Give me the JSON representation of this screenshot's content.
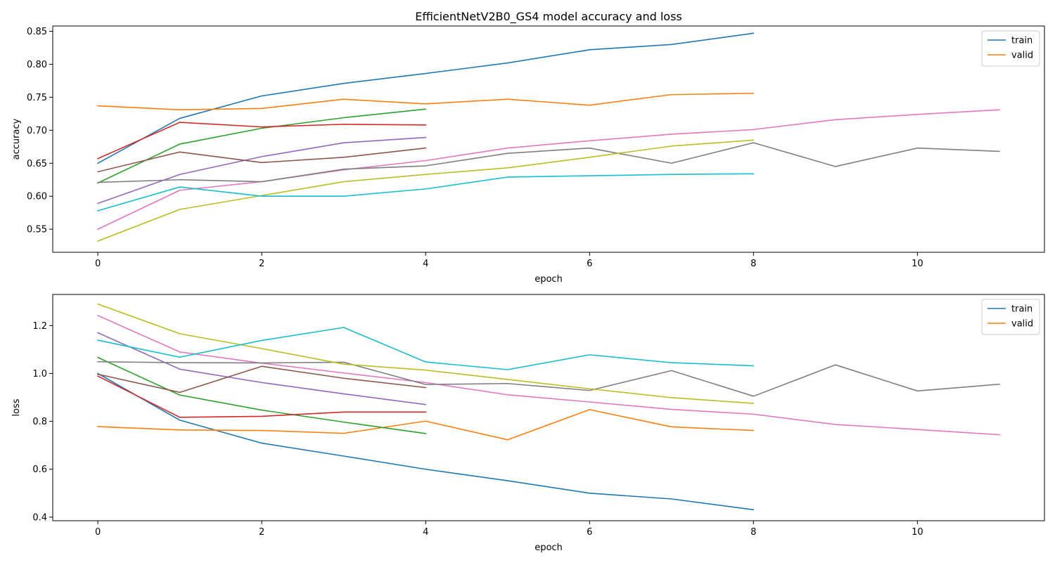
{
  "figure": {
    "title": "EfficientNetV2B0_GS4 model accuracy and loss"
  },
  "chart_data": [
    {
      "type": "line",
      "title": "EfficientNetV2B0_GS4 model accuracy and loss",
      "xlabel": "epoch",
      "ylabel": "accuracy",
      "xlim": [
        -0.55,
        11.55
      ],
      "ylim": [
        0.515,
        0.858
      ],
      "xticks": [
        0,
        2,
        4,
        6,
        8,
        10
      ],
      "yticks": [
        0.55,
        0.6,
        0.65,
        0.7,
        0.75,
        0.8,
        0.85
      ],
      "ytick_labels": [
        "0.55",
        "0.60",
        "0.65",
        "0.70",
        "0.75",
        "0.80",
        "0.85"
      ],
      "grid": false,
      "legend": {
        "placement": "top-right",
        "entries": [
          "train",
          "valid"
        ]
      },
      "series": [
        {
          "name": "train",
          "color": "#1f77b4",
          "x": [
            0,
            1,
            2,
            3,
            4,
            5,
            6,
            7,
            8
          ],
          "values": [
            0.65,
            0.718,
            0.752,
            0.771,
            0.786,
            0.802,
            0.822,
            0.83,
            0.847
          ]
        },
        {
          "name": "valid",
          "color": "#ff7f0e",
          "x": [
            0,
            1,
            2,
            3,
            4,
            5,
            6,
            7,
            8
          ],
          "values": [
            0.737,
            0.731,
            0.733,
            0.747,
            0.74,
            0.747,
            0.738,
            0.754,
            0.756
          ]
        },
        {
          "color": "#2ca02c",
          "x": [
            0,
            1,
            2,
            3,
            4
          ],
          "values": [
            0.62,
            0.679,
            0.703,
            0.719,
            0.732
          ]
        },
        {
          "color": "#d62728",
          "x": [
            0,
            1,
            2,
            3,
            4
          ],
          "values": [
            0.657,
            0.712,
            0.705,
            0.709,
            0.708
          ]
        },
        {
          "color": "#9467bd",
          "x": [
            0,
            1,
            2,
            3,
            4
          ],
          "values": [
            0.589,
            0.633,
            0.66,
            0.681,
            0.689
          ]
        },
        {
          "color": "#8c564b",
          "x": [
            0,
            1,
            2,
            3,
            4
          ],
          "values": [
            0.637,
            0.667,
            0.651,
            0.659,
            0.673
          ]
        },
        {
          "color": "#e377c2",
          "x": [
            0,
            1,
            2,
            3,
            4,
            5,
            6,
            7,
            8,
            9,
            10,
            11
          ],
          "values": [
            0.55,
            0.609,
            0.622,
            0.64,
            0.654,
            0.673,
            0.684,
            0.694,
            0.701,
            0.716,
            0.724,
            0.731
          ]
        },
        {
          "color": "#7f7f7f",
          "x": [
            0,
            1,
            2,
            3,
            4,
            5,
            6,
            7,
            8,
            9,
            10,
            11
          ],
          "values": [
            0.621,
            0.625,
            0.622,
            0.641,
            0.646,
            0.665,
            0.673,
            0.65,
            0.681,
            0.645,
            0.673,
            0.668
          ]
        },
        {
          "color": "#bcbd22",
          "x": [
            0,
            1,
            2,
            3,
            4,
            5,
            6,
            7,
            8
          ],
          "values": [
            0.532,
            0.58,
            0.601,
            0.622,
            0.633,
            0.643,
            0.659,
            0.676,
            0.685
          ]
        },
        {
          "color": "#17becf",
          "x": [
            0,
            1,
            2,
            3,
            4,
            5,
            6,
            7,
            8
          ],
          "values": [
            0.578,
            0.614,
            0.6,
            0.6,
            0.611,
            0.629,
            0.631,
            0.633,
            0.634
          ]
        }
      ]
    },
    {
      "type": "line",
      "xlabel": "epoch",
      "ylabel": "loss",
      "xlim": [
        -0.55,
        11.55
      ],
      "ylim": [
        0.385,
        1.33
      ],
      "xticks": [
        0,
        2,
        4,
        6,
        8,
        10
      ],
      "yticks": [
        0.4,
        0.6,
        0.8,
        1.0,
        1.2
      ],
      "ytick_labels": [
        "0.4",
        "0.6",
        "0.8",
        "1.0",
        "1.2"
      ],
      "grid": false,
      "legend": {
        "placement": "top-right",
        "entries": [
          "train",
          "valid"
        ]
      },
      "series": [
        {
          "name": "train",
          "color": "#1f77b4",
          "x": [
            0,
            1,
            2,
            3,
            4,
            5,
            6,
            7,
            8
          ],
          "values": [
            1.0,
            0.805,
            0.709,
            0.655,
            0.6,
            0.552,
            0.5,
            0.476,
            0.431
          ]
        },
        {
          "name": "valid",
          "color": "#ff7f0e",
          "x": [
            0,
            1,
            2,
            3,
            4,
            5,
            6,
            7,
            8
          ],
          "values": [
            0.778,
            0.764,
            0.762,
            0.75,
            0.801,
            0.723,
            0.849,
            0.777,
            0.762
          ]
        },
        {
          "color": "#2ca02c",
          "x": [
            0,
            1,
            2,
            3,
            4
          ],
          "values": [
            1.067,
            0.91,
            0.847,
            0.797,
            0.749
          ]
        },
        {
          "color": "#d62728",
          "x": [
            0,
            1,
            2,
            3,
            4
          ],
          "values": [
            0.989,
            0.817,
            0.821,
            0.839,
            0.839
          ]
        },
        {
          "color": "#9467bd",
          "x": [
            0,
            1,
            2,
            3,
            4
          ],
          "values": [
            1.17,
            1.018,
            0.962,
            0.915,
            0.87
          ]
        },
        {
          "color": "#8c564b",
          "x": [
            0,
            1,
            2,
            3,
            4
          ],
          "values": [
            0.997,
            0.921,
            1.03,
            0.98,
            0.941
          ]
        },
        {
          "color": "#e377c2",
          "x": [
            0,
            1,
            2,
            3,
            4,
            5,
            6,
            7,
            8,
            9,
            10,
            11
          ],
          "values": [
            1.242,
            1.09,
            1.043,
            1.002,
            0.962,
            0.911,
            0.881,
            0.85,
            0.83,
            0.787,
            0.766,
            0.744
          ]
        },
        {
          "color": "#7f7f7f",
          "x": [
            0,
            1,
            2,
            3,
            4,
            5,
            6,
            7,
            8,
            9,
            10,
            11
          ],
          "values": [
            1.049,
            1.045,
            1.044,
            1.047,
            0.954,
            0.958,
            0.929,
            1.012,
            0.905,
            1.036,
            0.927,
            0.955
          ]
        },
        {
          "color": "#bcbd22",
          "x": [
            0,
            1,
            2,
            3,
            4,
            5,
            6,
            7,
            8
          ],
          "values": [
            1.29,
            1.166,
            1.104,
            1.039,
            1.014,
            0.975,
            0.936,
            0.899,
            0.875
          ]
        },
        {
          "color": "#17becf",
          "x": [
            0,
            1,
            2,
            3,
            4,
            5,
            6,
            7,
            8
          ],
          "values": [
            1.139,
            1.068,
            1.138,
            1.192,
            1.048,
            1.016,
            1.078,
            1.045,
            1.032
          ]
        }
      ]
    }
  ]
}
